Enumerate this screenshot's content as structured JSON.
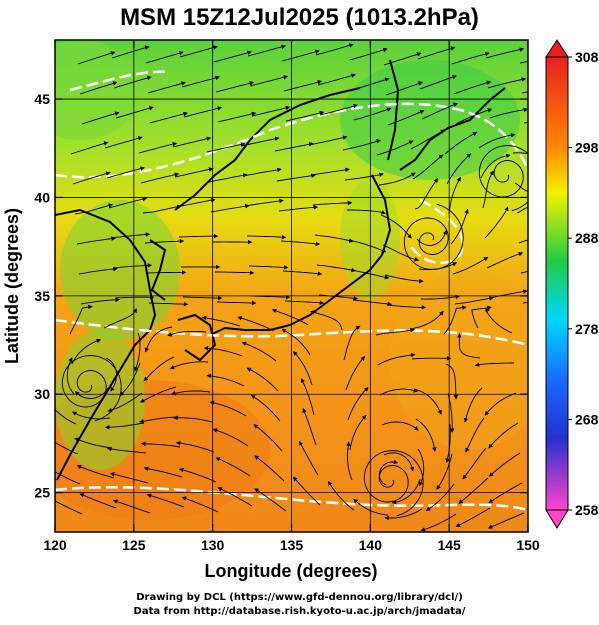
{
  "title": "MSM 15Z12Jul2025 (1013.2hPa)",
  "map": {
    "type": "temperature-streamline-map",
    "xlabel": "Longitude (degrees)",
    "ylabel": "Latitude  (degrees)",
    "xlim": [
      120,
      150
    ],
    "ylim": [
      23,
      48
    ],
    "x_ticks": [
      "120",
      "125",
      "130",
      "135",
      "140",
      "145",
      "150"
    ],
    "y_ticks": [
      "25",
      "30",
      "35",
      "40",
      "45"
    ],
    "grid": true
  },
  "colorbar": {
    "ticks": [
      "308",
      "298",
      "288",
      "278",
      "268",
      "258"
    ],
    "range": [
      258,
      308
    ],
    "colors": [
      "#ff44cc",
      "#2233ff",
      "#00d8ff",
      "#22cc44",
      "#f2f200",
      "#ff8800",
      "#e82020"
    ]
  },
  "credits": {
    "line1": "Drawing by DCL (https://www.gfd-dennou.org/library/dcl/)",
    "line2": "Data from http://database.rish.kyoto-u.ac.jp/arch/jmadata/"
  }
}
